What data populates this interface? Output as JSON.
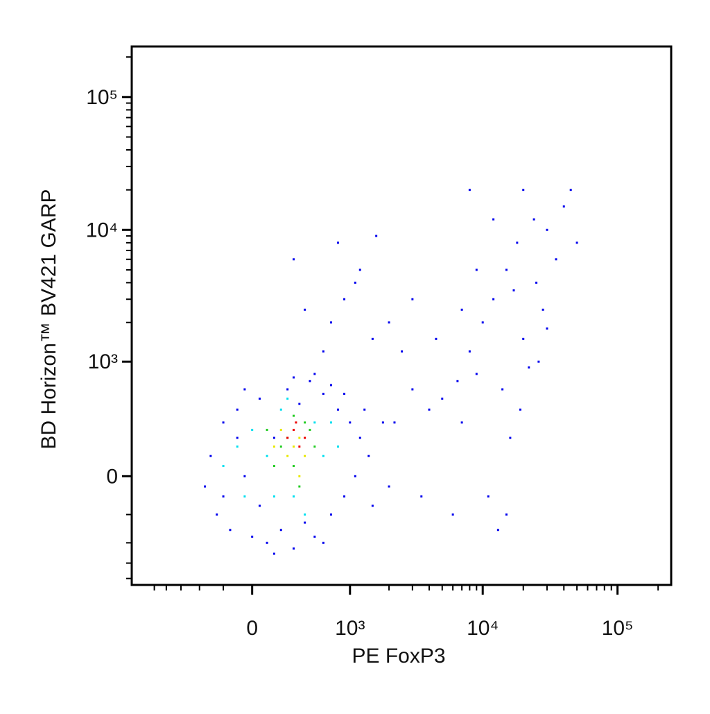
{
  "chart_data": {
    "type": "scatter",
    "x_label": "PE FoxP3",
    "y_label": "BD Horizon™ BV421 GARP",
    "xscale": "biexponential",
    "yscale": "biexponential",
    "xlim": [
      -1500,
      250000
    ],
    "ylim": [
      -900,
      240000
    ],
    "xticks": [
      0,
      {
        "value": 1000,
        "label": "10³"
      },
      {
        "value": 10000,
        "label": "10⁴"
      },
      {
        "value": 100000,
        "label": "10⁵"
      }
    ],
    "yticks": [
      0,
      {
        "value": 1000,
        "label": "10³"
      },
      {
        "value": 10000,
        "label": "10⁴"
      },
      {
        "value": 100000,
        "label": "10⁵"
      }
    ],
    "xminorticks": [
      -1000,
      -800,
      -600,
      -400,
      -200,
      2000,
      3000,
      4000,
      5000,
      6000,
      7000,
      8000,
      9000,
      20000,
      30000,
      40000,
      50000,
      60000,
      70000,
      80000,
      90000,
      200000
    ],
    "yminorticks": [
      -800,
      -600,
      -400,
      -200,
      2000,
      3000,
      4000,
      5000,
      6000,
      7000,
      8000,
      9000,
      20000,
      30000,
      40000,
      50000,
      60000,
      70000,
      80000,
      90000,
      200000
    ],
    "series": [
      {
        "color": "#0000ee",
        "x": [
          -300,
          -250,
          -200,
          -150,
          -100,
          -50,
          0,
          50,
          100,
          150,
          200,
          250,
          300,
          350,
          400,
          450,
          500,
          600,
          700,
          800,
          900,
          1000,
          1100,
          1200,
          1400,
          -350,
          -200,
          -100,
          50,
          700,
          1300,
          900,
          -50,
          300,
          150,
          500,
          600,
          1500,
          1800,
          2000,
          700,
          900,
          1200,
          800,
          1500,
          600,
          1100,
          400,
          300,
          2000,
          1600,
          2500,
          3000,
          2200,
          3500,
          4000,
          3000,
          4500,
          5000,
          6000,
          7000,
          8000,
          9000,
          10000,
          12000,
          15000,
          18000,
          20000,
          25000,
          30000,
          14000,
          11000,
          16000,
          22000,
          28000,
          35000,
          40000,
          12000,
          9000,
          7000,
          13000,
          19000,
          24000,
          45000,
          50000,
          8000,
          26000,
          17000,
          6500,
          15000,
          30000,
          20000
        ],
        "y": [
          100,
          -200,
          300,
          -300,
          400,
          0,
          -350,
          500,
          -400,
          200,
          -300,
          600,
          -450,
          450,
          -250,
          700,
          -350,
          550,
          -200,
          400,
          -100,
          300,
          0,
          200,
          100,
          -50,
          -100,
          200,
          -150,
          650,
          400,
          550,
          600,
          750,
          -500,
          800,
          -400,
          -150,
          300,
          -50,
          2000,
          3000,
          5000,
          8000,
          1500,
          1200,
          4000,
          2500,
          6000,
          2000,
          9000,
          1200,
          600,
          300,
          -100,
          400,
          3000,
          1500,
          500,
          -200,
          300,
          1200,
          800,
          2000,
          3000,
          5000,
          8000,
          1500,
          4000,
          10000,
          600,
          -100,
          200,
          900,
          2500,
          6000,
          15000,
          12000,
          5000,
          2500,
          -300,
          400,
          12000,
          20000,
          8000,
          20000,
          1000,
          3500,
          700,
          -200,
          1800,
          20000
        ]
      },
      {
        "color": "#00e0f0",
        "x": [
          100,
          -100,
          300,
          500,
          200,
          -200,
          600,
          400,
          0,
          700,
          150,
          800,
          250,
          -50
        ],
        "y": [
          100,
          150,
          -100,
          300,
          400,
          50,
          100,
          -200,
          250,
          300,
          -100,
          150,
          500,
          -100
        ]
      },
      {
        "color": "#22cc22",
        "x": [
          200,
          300,
          100,
          400,
          350,
          250,
          500,
          150,
          450,
          300
        ],
        "y": [
          150,
          50,
          250,
          300,
          -50,
          200,
          150,
          50,
          250,
          350
        ]
      },
      {
        "color": "#e8e800",
        "x": [
          250,
          350,
          300,
          200,
          400,
          150,
          350
        ],
        "y": [
          100,
          200,
          150,
          250,
          100,
          150,
          0
        ]
      },
      {
        "color": "#ee0000",
        "x": [
          300,
          350,
          250,
          400,
          320
        ],
        "y": [
          250,
          150,
          200,
          200,
          300
        ]
      }
    ]
  }
}
